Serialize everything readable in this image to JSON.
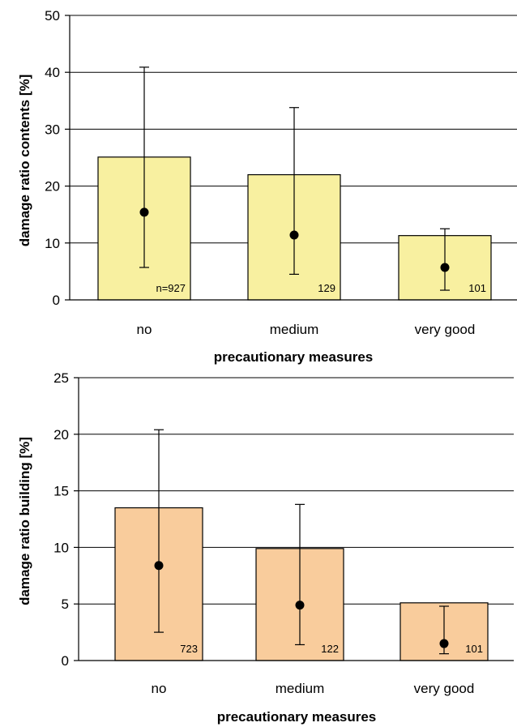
{
  "chart_data": [
    {
      "type": "bar",
      "categories": [
        "no",
        "medium",
        "very good"
      ],
      "series": [
        {
          "values": [
            25.1,
            22.0,
            11.3
          ]
        }
      ],
      "means": [
        15.4,
        11.4,
        5.7
      ],
      "error_low": [
        5.7,
        4.5,
        1.7
      ],
      "error_high": [
        40.9,
        33.8,
        12.5
      ],
      "n_labels": [
        "n=927",
        "129",
        "101"
      ],
      "xlabel": "precautionary measures",
      "ylabel": "damage ratio contents [%]",
      "ylim": [
        0,
        50
      ],
      "yticks": [
        0,
        10,
        20,
        30,
        40,
        50
      ],
      "grid": true,
      "bar_color": "#f8f0a0"
    },
    {
      "type": "bar",
      "categories": [
        "no",
        "medium",
        "very good"
      ],
      "series": [
        {
          "values": [
            13.5,
            9.9,
            5.1
          ]
        }
      ],
      "means": [
        8.4,
        4.9,
        1.5
      ],
      "error_low": [
        2.5,
        1.4,
        0.6
      ],
      "error_high": [
        20.4,
        13.8,
        4.8
      ],
      "n_labels": [
        "723",
        "122",
        "101"
      ],
      "xlabel": "precautionary measures",
      "ylabel": "damage ratio building [%]",
      "ylim": [
        0,
        25
      ],
      "yticks": [
        0,
        5,
        10,
        15,
        20,
        25
      ],
      "grid": true,
      "bar_color": "#f9cc9c"
    }
  ]
}
